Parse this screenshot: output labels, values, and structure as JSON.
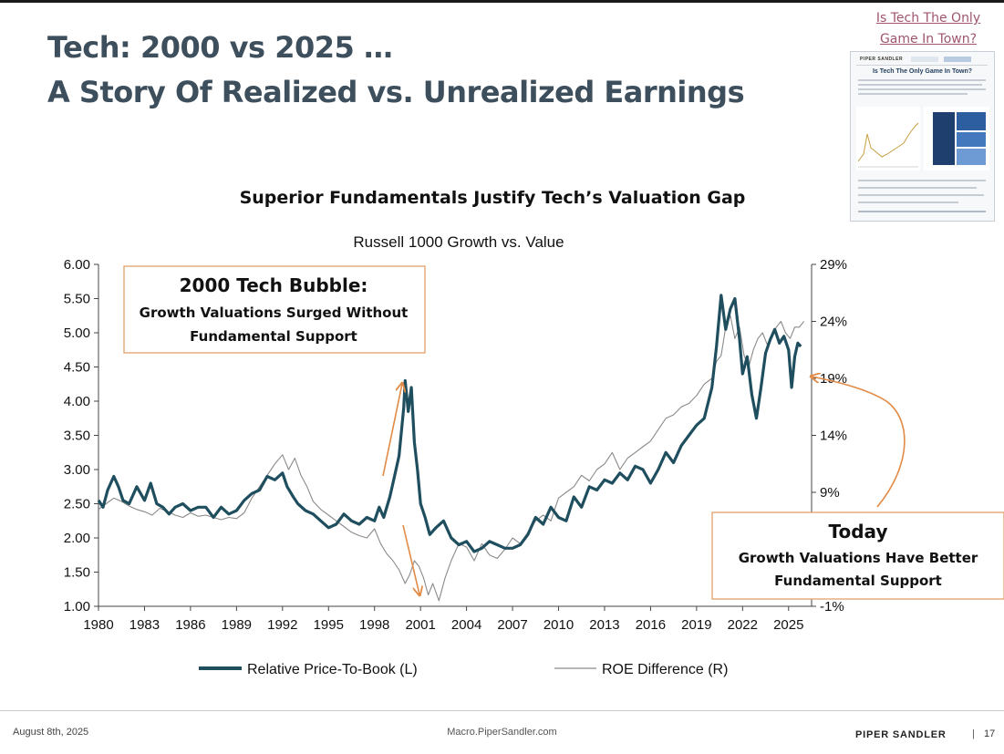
{
  "slide": {
    "title_line1": "Tech: 2000 vs 2025 …",
    "title_line2": "A Story Of Realized vs. Unrealized Earnings",
    "link_line1": "Is Tech The Only",
    "link_line2": "Game In Town?",
    "thumbnail_heading": "Is Tech The Only Game In Town?",
    "thumbnail_logo": "PIPER SANDLER"
  },
  "footer": {
    "date": "August 8th, 2025",
    "url": "Macro.PiperSandler.com",
    "brand": "PIPER SANDLER",
    "separator": "|",
    "page": "17"
  },
  "chart_data": {
    "type": "line",
    "title": "Superior Fundamentals Justify Tech’s Valuation Gap",
    "subtitle": "Russell 1000 Growth vs. Value",
    "x_ticks": [
      "1980",
      "1983",
      "1986",
      "1989",
      "1992",
      "1995",
      "1998",
      "2001",
      "2004",
      "2007",
      "2010",
      "2013",
      "2016",
      "2019",
      "2022",
      "2025"
    ],
    "xlim": [
      1980,
      2026.5
    ],
    "y_left": {
      "min": 1.0,
      "max": 6.0,
      "ticks": [
        "1.00",
        "1.50",
        "2.00",
        "2.50",
        "3.00",
        "3.50",
        "4.00",
        "4.50",
        "5.00",
        "5.50",
        "6.00"
      ]
    },
    "y_right": {
      "min": -1,
      "max": 29,
      "ticks": [
        "-1%",
        "4%",
        "9%",
        "14%",
        "19%",
        "24%",
        "29%"
      ]
    },
    "series": [
      {
        "name": "Relative Price-To-Book (L)",
        "axis": "left",
        "color": "#1f4e5f",
        "x": [
          1980,
          1980.3,
          1980.6,
          1981,
          1981.3,
          1981.6,
          1982,
          1982.5,
          1983,
          1983.4,
          1983.8,
          1984.2,
          1984.6,
          1985,
          1985.5,
          1986,
          1986.5,
          1987,
          1987.5,
          1988,
          1988.5,
          1989,
          1989.5,
          1990,
          1990.5,
          1991,
          1991.5,
          1992,
          1992.3,
          1992.7,
          1993,
          1993.5,
          1994,
          1994.5,
          1995,
          1995.5,
          1996,
          1996.5,
          1997,
          1997.5,
          1998,
          1998.3,
          1998.6,
          1999,
          1999.3,
          1999.6,
          1999.9,
          2000,
          2000.2,
          2000.4,
          2000.6,
          2000.8,
          2001,
          2001.3,
          2001.6,
          2002,
          2002.5,
          2003,
          2003.5,
          2004,
          2004.5,
          2005,
          2005.5,
          2006,
          2006.5,
          2007,
          2007.5,
          2008,
          2008.5,
          2009,
          2009.5,
          2010,
          2010.5,
          2011,
          2011.5,
          2012,
          2012.5,
          2013,
          2013.5,
          2014,
          2014.5,
          2015,
          2015.5,
          2016,
          2016.5,
          2017,
          2017.5,
          2018,
          2018.5,
          2019,
          2019.5,
          2020,
          2020.3,
          2020.6,
          2020.9,
          2021.2,
          2021.5,
          2021.8,
          2022,
          2022.3,
          2022.6,
          2022.9,
          2023.2,
          2023.5,
          2023.8,
          2024.1,
          2024.4,
          2024.7,
          2025,
          2025.2,
          2025.4,
          2025.6,
          2025.8
        ],
        "values": [
          2.55,
          2.45,
          2.7,
          2.9,
          2.75,
          2.55,
          2.5,
          2.75,
          2.55,
          2.8,
          2.5,
          2.45,
          2.35,
          2.45,
          2.5,
          2.4,
          2.45,
          2.45,
          2.3,
          2.45,
          2.35,
          2.4,
          2.55,
          2.65,
          2.7,
          2.9,
          2.85,
          2.95,
          2.75,
          2.6,
          2.5,
          2.4,
          2.35,
          2.25,
          2.15,
          2.2,
          2.35,
          2.25,
          2.2,
          2.3,
          2.25,
          2.45,
          2.3,
          2.6,
          2.9,
          3.2,
          3.9,
          4.3,
          3.85,
          4.2,
          3.4,
          3.0,
          2.5,
          2.3,
          2.05,
          2.15,
          2.25,
          2.0,
          1.9,
          1.95,
          1.8,
          1.85,
          1.95,
          1.9,
          1.85,
          1.85,
          1.9,
          2.05,
          2.3,
          2.2,
          2.45,
          2.3,
          2.25,
          2.6,
          2.45,
          2.75,
          2.7,
          2.85,
          2.8,
          2.95,
          2.85,
          3.05,
          3.0,
          2.8,
          3.0,
          3.25,
          3.1,
          3.35,
          3.5,
          3.65,
          3.75,
          4.2,
          4.8,
          5.55,
          5.05,
          5.35,
          5.5,
          4.9,
          4.4,
          4.65,
          4.1,
          3.75,
          4.2,
          4.7,
          4.9,
          5.05,
          4.85,
          4.95,
          4.75,
          4.2,
          4.65,
          4.85,
          4.8
        ]
      },
      {
        "name": "ROE Difference (R)",
        "axis": "right",
        "color": "#8a8a8a",
        "x": [
          1980,
          1980.5,
          1981,
          1981.5,
          1982,
          1982.5,
          1983,
          1983.5,
          1984,
          1984.5,
          1985,
          1985.5,
          1986,
          1986.5,
          1987,
          1987.5,
          1988,
          1988.5,
          1989,
          1989.5,
          1990,
          1990.5,
          1991,
          1991.5,
          1992,
          1992.4,
          1992.8,
          1993.2,
          1993.6,
          1994,
          1994.5,
          1995,
          1995.5,
          1996,
          1996.5,
          1997,
          1997.5,
          1998,
          1998.4,
          1998.8,
          1999.2,
          1999.6,
          2000,
          2000.3,
          2000.6,
          2000.9,
          2001.2,
          2001.5,
          2001.8,
          2002.2,
          2002.6,
          2003,
          2003.5,
          2004,
          2004.5,
          2005,
          2005.5,
          2006,
          2006.5,
          2007,
          2007.5,
          2008,
          2008.5,
          2009,
          2009.5,
          2010,
          2010.5,
          2011,
          2011.5,
          2012,
          2012.5,
          2013,
          2013.5,
          2014,
          2014.5,
          2015,
          2015.5,
          2016,
          2016.5,
          2017,
          2017.5,
          2018,
          2018.5,
          2019,
          2019.5,
          2020,
          2020.3,
          2020.6,
          2020.9,
          2021.2,
          2021.5,
          2021.8,
          2022.1,
          2022.4,
          2022.7,
          2023,
          2023.3,
          2023.6,
          2023.9,
          2024.2,
          2024.5,
          2024.8,
          2025.1,
          2025.4,
          2025.7,
          2026
        ],
        "values": [
          7.5,
          8.0,
          8.5,
          8.2,
          7.8,
          7.5,
          7.3,
          7.0,
          7.6,
          7.3,
          7.0,
          6.8,
          7.2,
          6.9,
          7.0,
          6.8,
          6.6,
          6.8,
          6.7,
          7.2,
          8.5,
          9.5,
          10.5,
          11.5,
          12.3,
          11.0,
          12.0,
          10.5,
          9.5,
          8.2,
          7.5,
          7.0,
          6.5,
          6.0,
          5.5,
          5.2,
          5.0,
          5.8,
          4.5,
          3.6,
          3.0,
          2.2,
          1.0,
          1.8,
          3.0,
          2.5,
          1.5,
          0.0,
          1.0,
          -0.5,
          1.5,
          3.0,
          4.5,
          4.2,
          3.0,
          4.5,
          3.5,
          3.2,
          4.0,
          5.0,
          4.5,
          5.5,
          6.5,
          7.0,
          6.5,
          8.5,
          9.0,
          9.5,
          10.5,
          10.0,
          11.0,
          11.5,
          12.5,
          11.0,
          12.0,
          12.5,
          13.0,
          13.5,
          14.5,
          15.5,
          15.8,
          16.5,
          16.8,
          17.5,
          18.5,
          19.0,
          20.5,
          21.0,
          23.5,
          24.5,
          22.5,
          23.5,
          21.0,
          20.0,
          21.5,
          22.5,
          23.0,
          22.0,
          22.5,
          23.5,
          24.0,
          23.0,
          22.5,
          23.5,
          23.5,
          24.0
        ]
      }
    ],
    "annotations": [
      {
        "heading": "2000 Tech Bubble:",
        "line1": "Growth Valuations Surged Without",
        "line2": "Fundamental Support"
      },
      {
        "heading": "Today",
        "line1": "Growth Valuations Have Better",
        "line2": "Fundamental Support"
      }
    ],
    "legend_position": "bottom-center"
  }
}
